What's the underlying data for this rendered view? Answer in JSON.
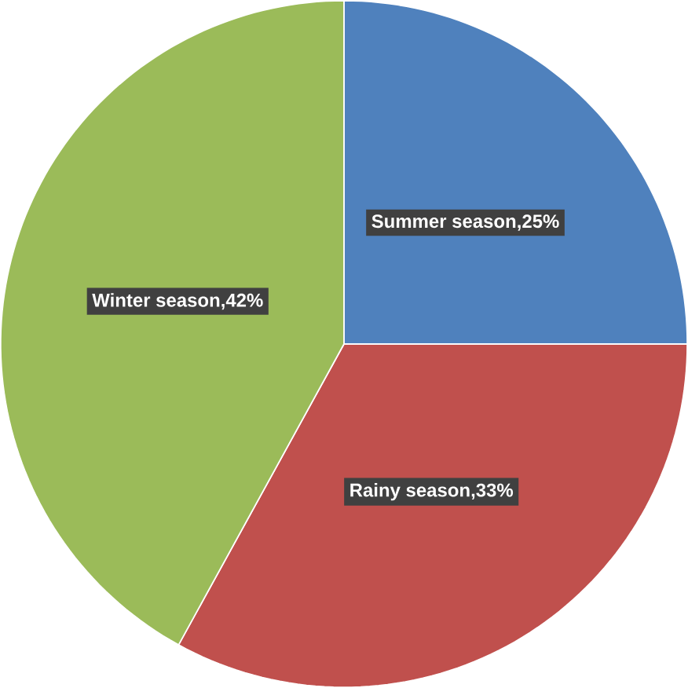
{
  "chart_data": {
    "type": "pie",
    "categories": [
      "Summer season",
      "Rainy season",
      "Winter season"
    ],
    "values": [
      25,
      33,
      42
    ],
    "value_labels": [
      ",25%",
      ",33%",
      ",42%"
    ],
    "colors": [
      "#4f81bd",
      "#c0504d",
      "#9bbb59"
    ]
  }
}
